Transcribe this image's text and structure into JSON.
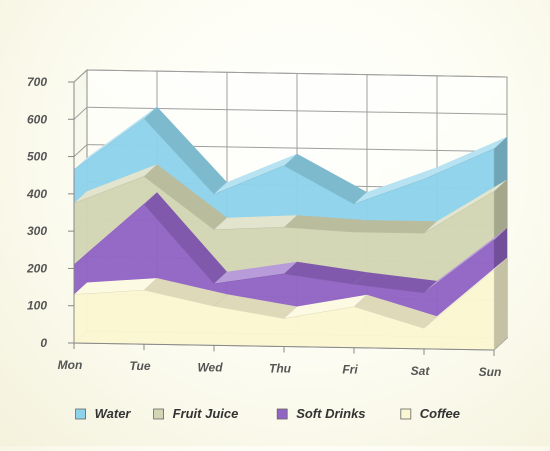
{
  "chart_data": {
    "type": "area",
    "stacked": true,
    "three_d": true,
    "title": "",
    "xlabel": "",
    "ylabel": "",
    "categories": [
      "Mon",
      "Tue",
      "Wed",
      "Thu",
      "Fri",
      "Sat",
      "Sun"
    ],
    "ylim": [
      0,
      700
    ],
    "yticks": [
      0,
      100,
      200,
      300,
      400,
      500,
      600,
      700
    ],
    "grid": true,
    "legend_position": "bottom",
    "series": [
      {
        "name": "Water",
        "color": "#8ed3ea",
        "values": [
          90,
          155,
          95,
          165,
          75,
          145,
          115
        ]
      },
      {
        "name": "Fruit Juice",
        "color": "#d3d6b4",
        "values": [
          165,
          75,
          145,
          125,
          140,
          160,
          130
        ]
      },
      {
        "name": "Soft Drinks",
        "color": "#9165c4",
        "values": [
          80,
          230,
          60,
          120,
          60,
          95,
          80
        ]
      },
      {
        "name": "Coffee",
        "color": "#fbf7d2",
        "values": [
          130,
          145,
          105,
          75,
          110,
          55,
          215
        ]
      }
    ]
  }
}
